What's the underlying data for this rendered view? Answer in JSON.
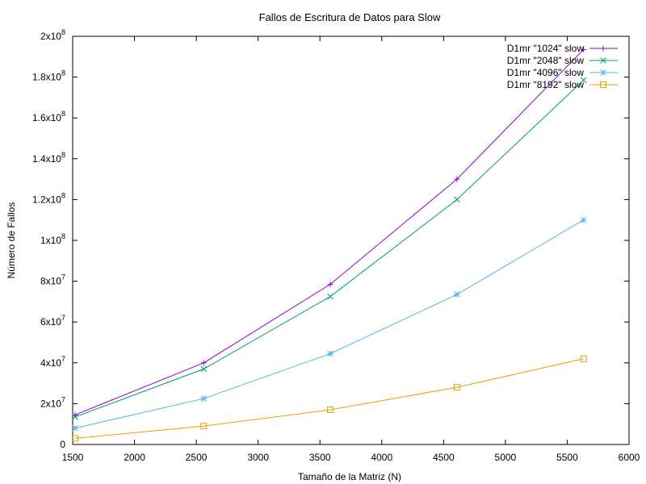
{
  "chart_data": {
    "type": "line",
    "title": "Fallos de Escritura de Datos para Slow",
    "xlabel": "Tamaño de la Matriz (N)",
    "ylabel": "Número de Fallos",
    "xlim": [
      1500,
      6000
    ],
    "ylim": [
      0,
      200000000
    ],
    "x_ticks": [
      1500,
      2000,
      2500,
      3000,
      3500,
      4000,
      4500,
      5000,
      5500,
      6000
    ],
    "y_ticks": [
      {
        "value": 0,
        "mantissa": "0",
        "exp": ""
      },
      {
        "value": 20000000,
        "mantissa": "2x10",
        "exp": "7"
      },
      {
        "value": 40000000,
        "mantissa": "4x10",
        "exp": "7"
      },
      {
        "value": 60000000,
        "mantissa": "6x10",
        "exp": "7"
      },
      {
        "value": 80000000,
        "mantissa": "8x10",
        "exp": "7"
      },
      {
        "value": 100000000,
        "mantissa": "1x10",
        "exp": "8"
      },
      {
        "value": 120000000,
        "mantissa": "1.2x10",
        "exp": "8"
      },
      {
        "value": 140000000,
        "mantissa": "1.4x10",
        "exp": "8"
      },
      {
        "value": 160000000,
        "mantissa": "1.6x10",
        "exp": "8"
      },
      {
        "value": 180000000,
        "mantissa": "1.8x10",
        "exp": "8"
      },
      {
        "value": 200000000,
        "mantissa": "2x10",
        "exp": "8"
      }
    ],
    "legend_position": "top-right",
    "grid": false,
    "series": [
      {
        "name": "D1mr \"1024\" slow",
        "color": "#9400d3",
        "marker": "plus",
        "x": [
          1520,
          2560,
          3584,
          4608,
          5632
        ],
        "y": [
          14500000,
          40000000,
          78500000,
          130000000,
          193500000
        ]
      },
      {
        "name": "D1mr \"2048\" slow",
        "color": "#009e73",
        "marker": "cross",
        "x": [
          1520,
          2560,
          3584,
          4608,
          5632
        ],
        "y": [
          13500000,
          37000000,
          72500000,
          120000000,
          178500000
        ]
      },
      {
        "name": "D1mr \"4096\" slow",
        "color": "#56b4e9",
        "marker": "star",
        "x": [
          1520,
          2560,
          3584,
          4608,
          5632
        ],
        "y": [
          8000000,
          22500000,
          44500000,
          73500000,
          110000000
        ]
      },
      {
        "name": "D1mr \"8192\" slow",
        "color": "#e69f00",
        "marker": "square",
        "x": [
          1520,
          2560,
          3584,
          4608,
          5632
        ],
        "y": [
          3000000,
          9000000,
          17000000,
          28000000,
          42000000
        ]
      }
    ]
  }
}
